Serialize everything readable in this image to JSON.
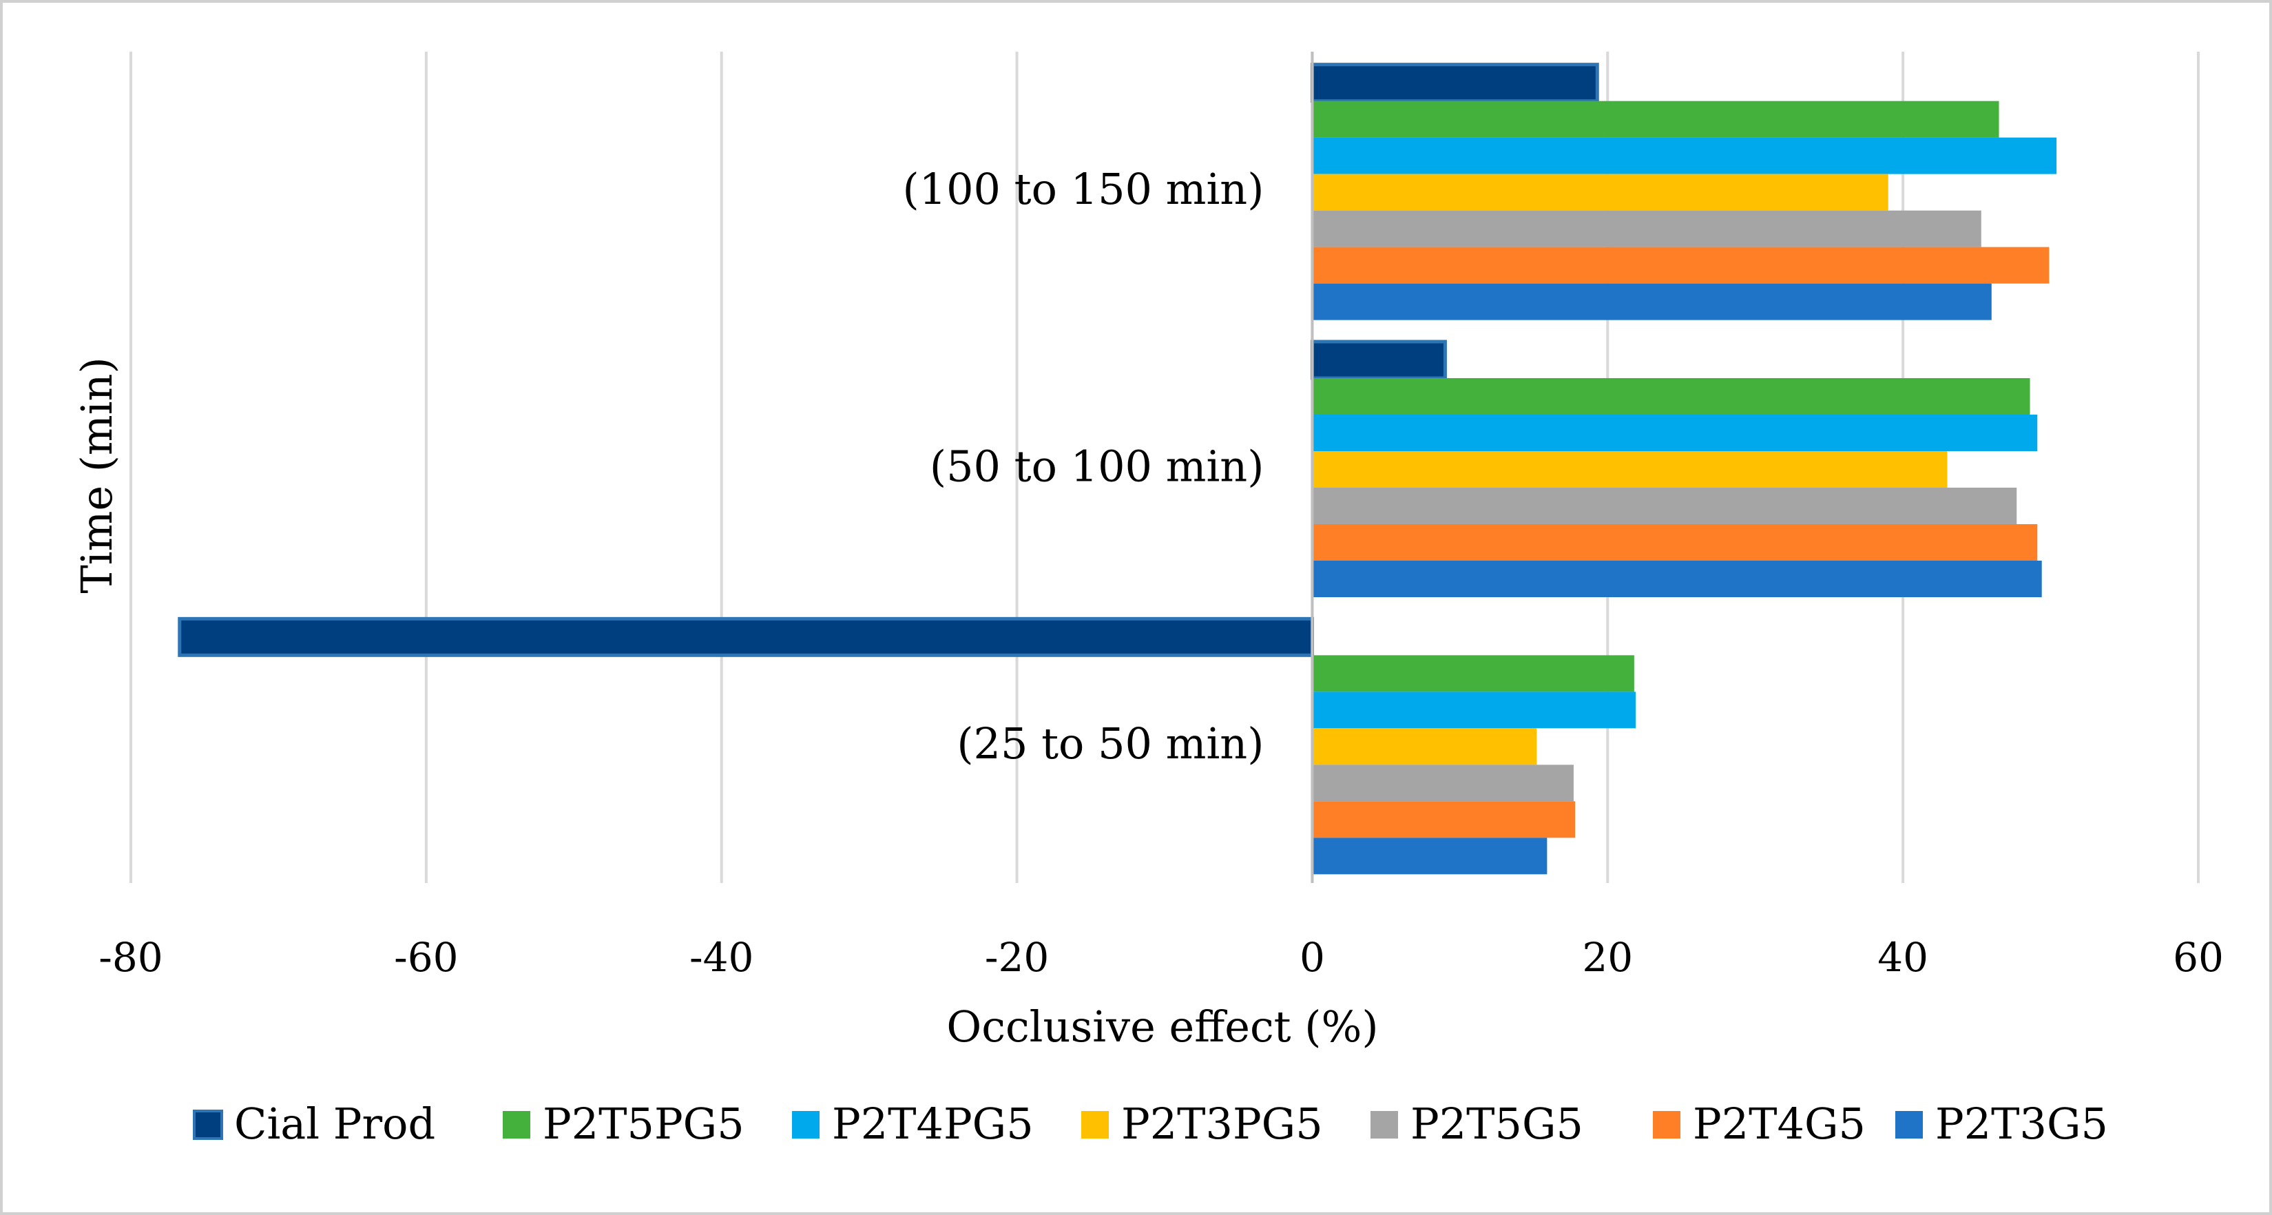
{
  "chart_data": {
    "type": "bar",
    "orientation": "horizontal",
    "title": "",
    "xlabel": "Occlusive effect (%)",
    "ylabel": "Time (min)",
    "xlim": [
      -80,
      60
    ],
    "x_ticks": [
      "-80",
      "-60",
      "-40",
      "-20",
      "0",
      "20",
      "40",
      "60"
    ],
    "categories": [
      "(100 to 150 min)",
      "(50 to 100 min)",
      "(25 to 50 min)"
    ],
    "series": [
      {
        "name": "Cial Prod",
        "color": "#003f7f",
        "values": [
          19.3,
          9.0,
          -76.7
        ]
      },
      {
        "name": "P2T5PG5",
        "color": "#43b13c",
        "values": [
          46.5,
          48.6,
          21.8
        ]
      },
      {
        "name": "P2T4PG5",
        "color": "#00a8ec",
        "values": [
          50.4,
          49.1,
          21.9
        ]
      },
      {
        "name": "P2T3PG5",
        "color": "#ffc000",
        "values": [
          39.0,
          43.0,
          15.2
        ]
      },
      {
        "name": "P2T5G5",
        "color": "#a5a5a5",
        "values": [
          45.3,
          47.7,
          17.7
        ]
      },
      {
        "name": "P2T4G5",
        "color": "#ff7f27",
        "values": [
          49.9,
          49.1,
          17.8
        ]
      },
      {
        "name": "P2T3G5",
        "color": "#1f74c8",
        "values": [
          46.0,
          49.4,
          15.9
        ]
      }
    ],
    "grid": "vertical",
    "legend": "bottom",
    "frame_color": "#d0d0d0",
    "grid_color": "#d9d9d9"
  }
}
